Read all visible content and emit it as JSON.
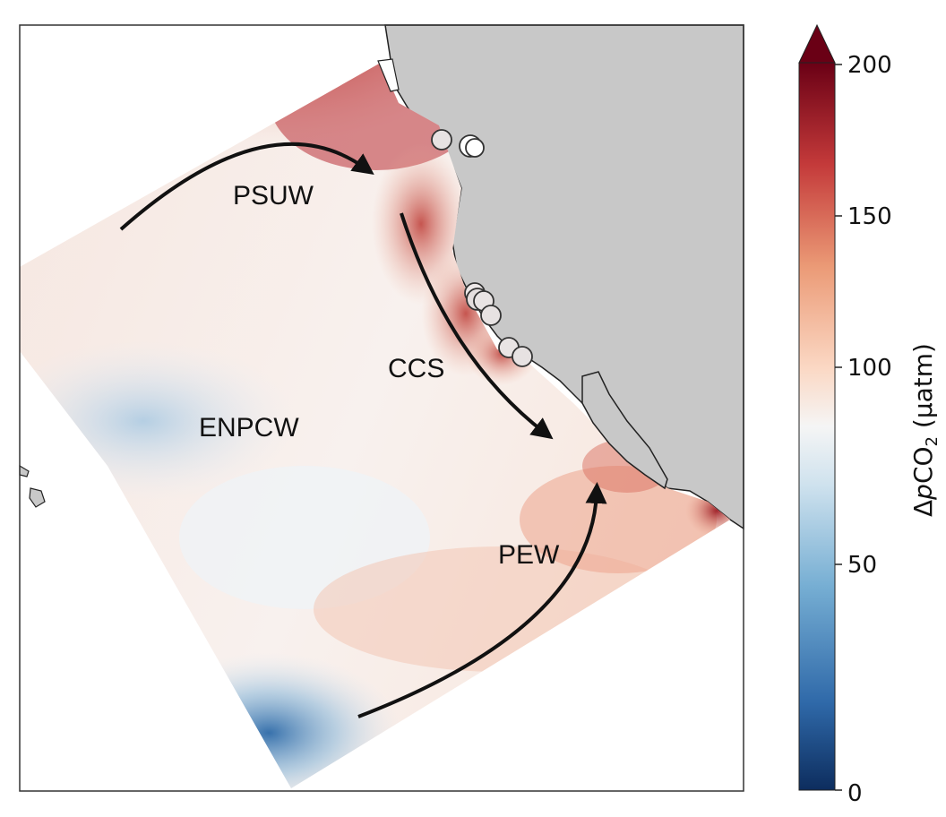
{
  "map": {
    "regions": {
      "psuw": "PSUW",
      "ccs": "CCS",
      "enpcw": "ENPCW",
      "pew": "PEW"
    }
  },
  "colorbar": {
    "title_delta": "Δ",
    "title_p": "p",
    "title_co": "CO",
    "title_sub": "2",
    "title_unit": " (μatm)",
    "ticks": [
      "200",
      "150",
      "100",
      "50",
      "0"
    ],
    "min": 0,
    "max": 200,
    "extend": "max",
    "colormap": "RdBu_r"
  },
  "colors": {
    "land": "#c8c8c8",
    "coastline": "#222222",
    "arrow": "#111111",
    "frame": "#333333"
  }
}
